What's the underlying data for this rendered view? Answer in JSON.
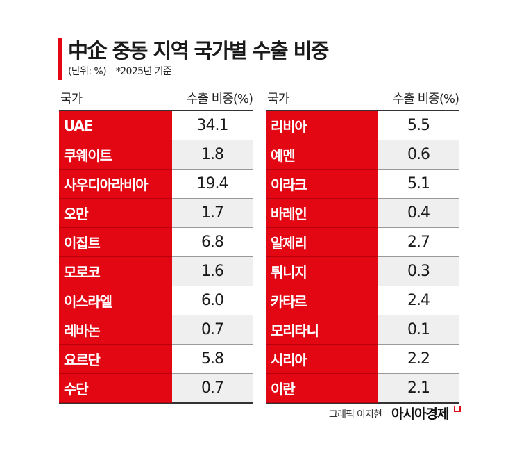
{
  "header": {
    "title": "中企 중동 지역 국가별 수출 비중",
    "unit_note": "(단위: %)",
    "basis_note": "*2025년 기준"
  },
  "columns": {
    "country": "국가",
    "share": "수출 비중(%)"
  },
  "left_table": [
    {
      "country": "UAE",
      "share": "34.1"
    },
    {
      "country": "쿠웨이트",
      "share": "1.8"
    },
    {
      "country": "사우디아라비아",
      "share": "19.4"
    },
    {
      "country": "오만",
      "share": "1.7"
    },
    {
      "country": "이집트",
      "share": "6.8"
    },
    {
      "country": "모로코",
      "share": "1.6"
    },
    {
      "country": "이스라엘",
      "share": "6.0"
    },
    {
      "country": "레바논",
      "share": "0.7"
    },
    {
      "country": "요르단",
      "share": "5.8"
    },
    {
      "country": "수단",
      "share": "0.7"
    }
  ],
  "right_table": [
    {
      "country": "리비아",
      "share": "5.5"
    },
    {
      "country": "예멘",
      "share": "0.6"
    },
    {
      "country": "이라크",
      "share": "5.1"
    },
    {
      "country": "바레인",
      "share": "0.4"
    },
    {
      "country": "알제리",
      "share": "2.7"
    },
    {
      "country": "튀니지",
      "share": "0.3"
    },
    {
      "country": "카타르",
      "share": "2.4"
    },
    {
      "country": "모리타니",
      "share": "0.1"
    },
    {
      "country": "시리아",
      "share": "2.2"
    },
    {
      "country": "이란",
      "share": "2.1"
    }
  ],
  "footer": {
    "credit": "그래픽 이지현",
    "brand": "아시아경제"
  },
  "colors": {
    "accent": "#e30613",
    "alt_row": "#efefef"
  },
  "chart_data": {
    "type": "table",
    "title": "中企 중동 지역 국가별 수출 비중",
    "subtitle": "(단위: %) *2025년 기준",
    "columns": [
      "국가",
      "수출 비중(%)"
    ],
    "categories": [
      "UAE",
      "쿠웨이트",
      "사우디아라비아",
      "오만",
      "이집트",
      "모로코",
      "이스라엘",
      "레바논",
      "요르단",
      "수단",
      "리비아",
      "예멘",
      "이라크",
      "바레인",
      "알제리",
      "튀니지",
      "카타르",
      "모리타니",
      "시리아",
      "이란"
    ],
    "values": [
      34.1,
      1.8,
      19.4,
      1.7,
      6.8,
      1.6,
      6.0,
      0.7,
      5.8,
      0.7,
      5.5,
      0.6,
      5.1,
      0.4,
      2.7,
      0.3,
      2.4,
      0.1,
      2.2,
      2.1
    ],
    "unit": "%",
    "source_credit": "그래픽 이지현 아시아경제"
  }
}
